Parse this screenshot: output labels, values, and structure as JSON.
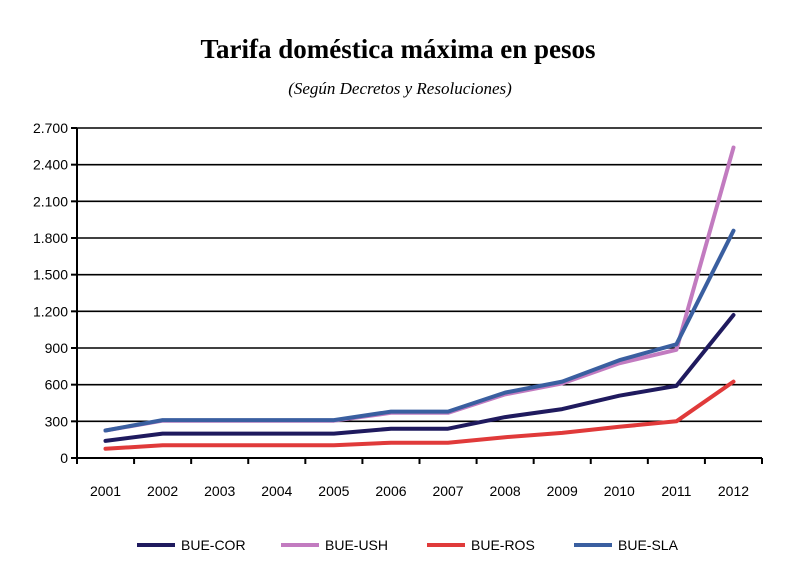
{
  "chart_data": {
    "type": "line",
    "title": "Tarifa doméstica máxima en pesos",
    "subtitle": "(Según Decretos y Resoluciones)",
    "xlabel": "",
    "ylabel": "",
    "categories": [
      "2001",
      "2002",
      "2003",
      "2004",
      "2005",
      "2006",
      "2007",
      "2008",
      "2009",
      "2010",
      "2011",
      "2012"
    ],
    "ylim": [
      0,
      2700
    ],
    "yticks": [
      0,
      300,
      600,
      900,
      1200,
      1500,
      1800,
      2100,
      2400,
      2700
    ],
    "ytick_labels": [
      "0",
      "300",
      "600",
      "900",
      "1.200",
      "1.500",
      "1.800",
      "2.100",
      "2.400",
      "2.700"
    ],
    "grid": true,
    "legend_position": "bottom",
    "series": [
      {
        "name": "BUE-COR",
        "color": "#1f1a5e",
        "values": [
          140,
          200,
          200,
          200,
          200,
          240,
          240,
          335,
          400,
          510,
          590,
          1170
        ]
      },
      {
        "name": "BUE-USH",
        "color": "#c27bc0",
        "values": [
          225,
          305,
          305,
          305,
          305,
          370,
          370,
          520,
          610,
          775,
          885,
          2540
        ]
      },
      {
        "name": "BUE-ROS",
        "color": "#e03a3a",
        "values": [
          75,
          105,
          105,
          105,
          105,
          125,
          125,
          170,
          205,
          255,
          300,
          625
        ]
      },
      {
        "name": "BUE-SLA",
        "color": "#3a5fa0",
        "values": [
          225,
          310,
          310,
          310,
          310,
          380,
          380,
          535,
          625,
          800,
          930,
          1860
        ]
      }
    ]
  }
}
